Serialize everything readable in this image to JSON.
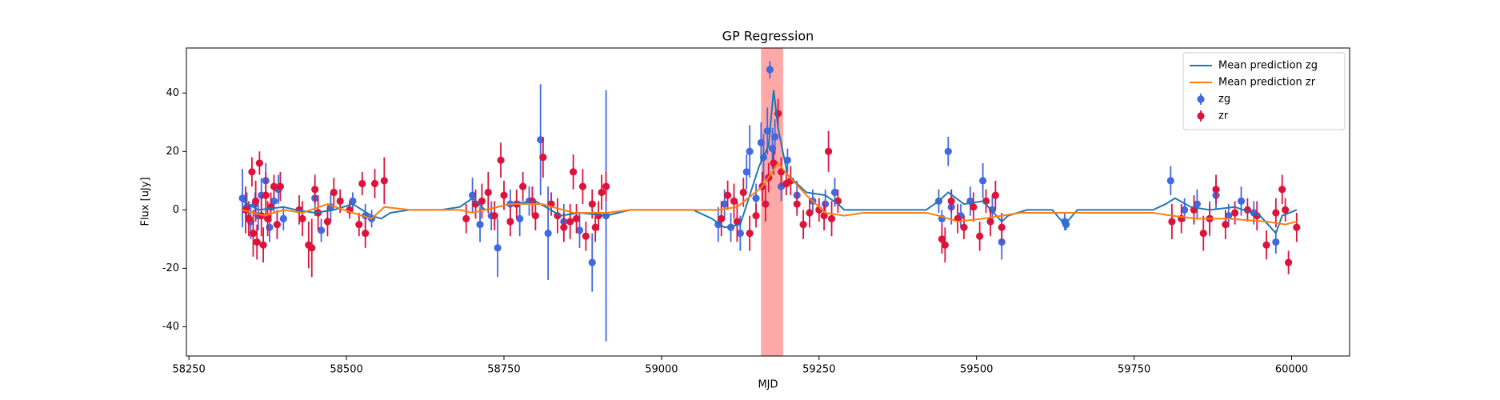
{
  "chart_data": {
    "type": "errorbar",
    "title": "GP Regression",
    "x_label": "MJD",
    "y_label": "Flux [uJy]",
    "xlim": [
      58246,
      60092
    ],
    "ylim": [
      -50,
      55.4
    ],
    "xticks": [
      58250,
      58500,
      58750,
      59000,
      59250,
      59500,
      59750,
      60000
    ],
    "yticks": [
      -40,
      -20,
      0,
      20,
      40
    ],
    "legend": "upper right",
    "span": {
      "x": [
        59158,
        59193
      ],
      "color": "#ff9999"
    },
    "series": [
      {
        "name": "Mean prediction zg",
        "kind": "line",
        "color": "#1f77b4",
        "x": [
          58335,
          58360,
          58400,
          58420,
          58450,
          58480,
          58510,
          58540,
          58555,
          58570,
          58600,
          58650,
          58680,
          58700,
          58720,
          58760,
          58800,
          58840,
          58870,
          58912,
          58950,
          59050,
          59080,
          59100,
          59125,
          59140,
          59155,
          59170,
          59178,
          59185,
          59200,
          59230,
          59260,
          59280,
          59290,
          59320,
          59420,
          59440,
          59455,
          59480,
          59510,
          59540,
          59550,
          59580,
          59620,
          59640,
          59660,
          59780,
          59800,
          59815,
          59840,
          59870,
          59910,
          59950,
          59975,
          59985,
          60008
        ],
        "values": [
          3,
          0,
          1,
          0,
          -1,
          0,
          2,
          -2,
          -3,
          -1,
          0,
          0,
          1,
          4,
          0,
          2,
          3,
          -2,
          -1,
          -2,
          0,
          0,
          -3,
          -6,
          -5,
          5,
          15,
          22,
          41,
          28,
          12,
          6,
          5,
          2,
          0,
          0,
          0,
          3,
          6,
          2,
          3,
          -4,
          -2,
          0,
          0,
          -5,
          0,
          0,
          2,
          4,
          1,
          0,
          1,
          -2,
          -8,
          -2,
          0
        ]
      },
      {
        "name": "Mean prediction zr",
        "kind": "line",
        "color": "#ff7f0e",
        "x": [
          58335,
          58370,
          58400,
          58430,
          58470,
          58510,
          58540,
          58560,
          58600,
          58680,
          58700,
          58760,
          58810,
          58860,
          58912,
          58950,
          59050,
          59090,
          59120,
          59160,
          59185,
          59200,
          59230,
          59260,
          59290,
          59320,
          59420,
          59440,
          59470,
          59510,
          59540,
          59570,
          59620,
          59780,
          59810,
          59850,
          59900,
          59960,
          59990,
          60008
        ],
        "values": [
          0,
          -2,
          0,
          -1,
          2,
          -1,
          -3,
          1,
          0,
          0,
          -1,
          2,
          2,
          -1,
          -1,
          0,
          0,
          0,
          1,
          8,
          16,
          12,
          5,
          -1,
          -2,
          -1,
          -1,
          -2,
          -4,
          -3,
          -2,
          -1,
          -1,
          -1,
          -2,
          -3,
          -3,
          -4,
          -5,
          -4
        ]
      },
      {
        "name": "zg",
        "kind": "errorbar",
        "color": "#4169e1",
        "x": [
          58335,
          58342,
          58348,
          58355,
          58360,
          58365,
          58372,
          58378,
          58385,
          58392,
          58400,
          58450,
          58460,
          58475,
          58510,
          58530,
          58540,
          58700,
          58712,
          58730,
          58740,
          58760,
          58775,
          58790,
          58808,
          58820,
          58845,
          58870,
          58890,
          58912,
          59090,
          59100,
          59110,
          59125,
          59135,
          59140,
          59150,
          59158,
          59162,
          59168,
          59172,
          59176,
          59180,
          59190,
          59200,
          59215,
          59240,
          59260,
          59275,
          59440,
          59445,
          59455,
          59460,
          59475,
          59490,
          59510,
          59525,
          59540,
          59640,
          59642,
          59808,
          59830,
          59850,
          59870,
          59880,
          59900,
          59920,
          59940,
          59975
        ],
        "values": [
          4,
          1,
          -4,
          2,
          -2,
          5,
          10,
          -6,
          3,
          7,
          -3,
          4,
          -7,
          1,
          3,
          -2,
          -3,
          5,
          -5,
          -2,
          -13,
          2,
          -3,
          3,
          24,
          -8,
          -4,
          -7,
          -18,
          -2,
          -5,
          2,
          -6,
          -8,
          13,
          20,
          4,
          23,
          18,
          27,
          48,
          21,
          25,
          8,
          17,
          5,
          3,
          2,
          6,
          3,
          -3,
          20,
          1,
          -2,
          3,
          10,
          0,
          -11,
          -4,
          -5,
          10,
          0,
          2,
          -3,
          5,
          -2,
          3,
          -1,
          -11
        ],
        "errors": [
          10,
          5,
          6,
          4,
          5,
          6,
          6,
          5,
          4,
          5,
          4,
          6,
          4,
          5,
          3,
          4,
          3,
          6,
          6,
          5,
          10,
          5,
          6,
          5,
          19,
          16,
          6,
          6,
          10,
          43,
          6,
          5,
          5,
          6,
          6,
          9,
          5,
          7,
          8,
          8,
          3,
          7,
          6,
          5,
          4,
          5,
          4,
          5,
          5,
          4,
          3,
          5,
          6,
          4,
          5,
          6,
          5,
          6,
          3,
          2,
          5,
          4,
          5,
          6,
          5,
          4,
          5,
          4,
          4
        ]
      },
      {
        "name": "zr",
        "kind": "errorbar",
        "color": "#dc143c",
        "x": [
          58340,
          58345,
          58350,
          58352,
          58356,
          58358,
          58362,
          58365,
          58368,
          58372,
          58375,
          58380,
          58385,
          58390,
          58395,
          58425,
          58430,
          58440,
          58445,
          58450,
          58455,
          58470,
          58480,
          58490,
          58505,
          58520,
          58525,
          58530,
          58545,
          58560,
          58690,
          58705,
          58715,
          58725,
          58735,
          58745,
          58750,
          58760,
          58770,
          58780,
          58795,
          58800,
          58812,
          58825,
          58835,
          58845,
          58855,
          58860,
          58865,
          58875,
          58880,
          58890,
          58895,
          58900,
          58905,
          58912,
          59095,
          59105,
          59115,
          59120,
          59130,
          59140,
          59150,
          59160,
          59165,
          59170,
          59178,
          59185,
          59190,
          59198,
          59205,
          59215,
          59225,
          59235,
          59250,
          59258,
          59265,
          59270,
          59280,
          59445,
          59450,
          59460,
          59470,
          59480,
          59495,
          59505,
          59515,
          59522,
          59530,
          59540,
          59810,
          59825,
          59845,
          59860,
          59870,
          59880,
          59895,
          59910,
          59930,
          59945,
          59960,
          59975,
          59985,
          59990,
          59995,
          60008
        ],
        "values": [
          0,
          -3,
          13,
          -8,
          3,
          -11,
          16,
          -2,
          -12,
          5,
          -3,
          1,
          8,
          -5,
          8,
          0,
          -3,
          -12,
          -13,
          7,
          -1,
          -4,
          6,
          3,
          0,
          -5,
          9,
          -8,
          9,
          10,
          -3,
          2,
          3,
          6,
          -2,
          17,
          5,
          -4,
          2,
          8,
          3,
          -2,
          18,
          2,
          -2,
          -6,
          -4,
          13,
          -3,
          8,
          -9,
          2,
          -6,
          -2,
          6,
          8,
          -3,
          5,
          3,
          -4,
          6,
          -8,
          -2,
          8,
          2,
          11,
          16,
          33,
          13,
          9,
          10,
          2,
          -5,
          -1,
          0,
          -2,
          20,
          -3,
          3,
          -10,
          -12,
          3,
          -3,
          -6,
          1,
          -9,
          3,
          -4,
          5,
          -6,
          -4,
          -3,
          0,
          -8,
          -3,
          7,
          -5,
          -1,
          0,
          -2,
          -12,
          -1,
          7,
          0,
          -18,
          -6
        ],
        "errors": [
          8,
          6,
          5,
          8,
          7,
          6,
          4,
          7,
          6,
          8,
          6,
          5,
          4,
          5,
          5,
          5,
          6,
          8,
          10,
          5,
          6,
          5,
          5,
          4,
          3,
          4,
          4,
          5,
          5,
          8,
          5,
          5,
          6,
          7,
          5,
          6,
          5,
          5,
          5,
          5,
          5,
          5,
          7,
          4,
          6,
          5,
          6,
          6,
          5,
          6,
          5,
          5,
          5,
          5,
          6,
          5,
          6,
          5,
          6,
          7,
          5,
          6,
          4,
          5,
          6,
          5,
          4,
          5,
          5,
          4,
          5,
          4,
          5,
          5,
          4,
          5,
          7,
          6,
          4,
          5,
          6,
          4,
          5,
          4,
          5,
          5,
          4,
          5,
          5,
          5,
          6,
          5,
          5,
          6,
          5,
          5,
          5,
          4,
          4,
          5,
          5,
          5,
          5,
          4,
          4,
          5
        ]
      }
    ]
  }
}
